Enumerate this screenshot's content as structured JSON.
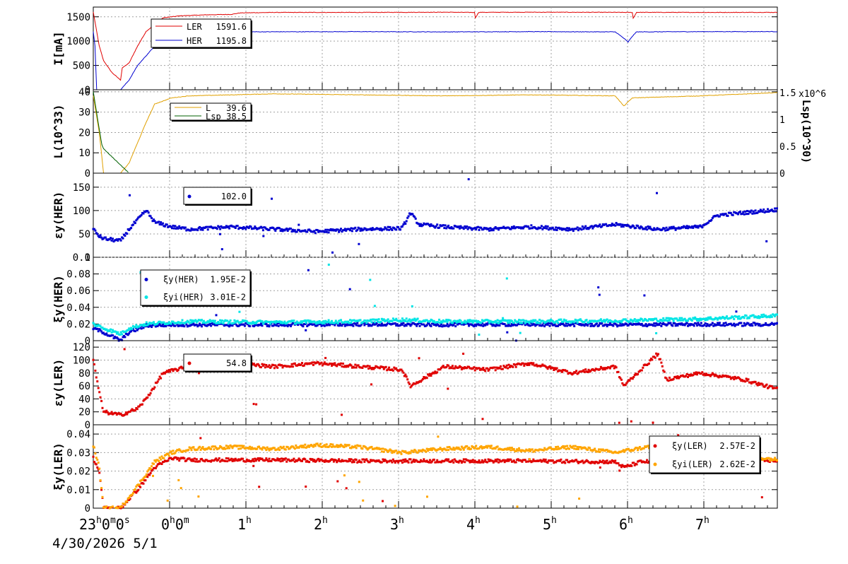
{
  "time_axis": {
    "tick_labels": [
      {
        "h": "23",
        "rest": "0",
        "rest_sup": "m",
        "tail": "0",
        "tail_sup": "s",
        "hour_sup": "h"
      },
      {
        "h": "0",
        "hour_sup": "h",
        "rest": "0",
        "rest_sup": "m"
      },
      {
        "h": "1",
        "hour_sup": "h"
      },
      {
        "h": "2",
        "hour_sup": "h"
      },
      {
        "h": "3",
        "hour_sup": "h"
      },
      {
        "h": "4",
        "hour_sup": "h"
      },
      {
        "h": "5",
        "hour_sup": "h"
      },
      {
        "h": "6",
        "hour_sup": "h"
      },
      {
        "h": "7",
        "hour_sup": "h"
      }
    ],
    "date_text": "4/30/2026  5/1"
  },
  "colors": {
    "ler": "#e00000",
    "her": "#0000d0",
    "lumi": "#e0a000",
    "lsp_green": "#006000",
    "cyan": "#00e5e5",
    "orange": "#ffa500",
    "grid": "#a0a0a0"
  },
  "chart_data": [
    {
      "type": "line",
      "ylabel": "I[mA]",
      "ylim": [
        0,
        1700
      ],
      "yticks": [
        "0",
        "500",
        "1000",
        "1500"
      ],
      "series": [
        {
          "name": "LER",
          "value_text": "1591.6",
          "x": [
            -0.12,
            -0.1,
            -0.05,
            0.0,
            0.1,
            0.2,
            0.22,
            0.3,
            0.4,
            0.5,
            0.7,
            0.9,
            1.2,
            1.5,
            1.6,
            2.0,
            3.0,
            4.0,
            4.35,
            4.36,
            4.4,
            5.0,
            6.0,
            6.2,
            6.21,
            6.25,
            7.0,
            7.9
          ],
          "y": [
            1600,
            1400,
            900,
            600,
            350,
            200,
            450,
            550,
            900,
            1200,
            1480,
            1520,
            1540,
            1550,
            1580,
            1590,
            1590,
            1595,
            1590,
            1480,
            1592,
            1595,
            1592,
            1590,
            1470,
            1592,
            1590,
            1591.6
          ]
        },
        {
          "name": "HER",
          "value_text": "1195.8",
          "x": [
            -0.12,
            -0.1,
            -0.08,
            0.0,
            0.2,
            0.3,
            0.4,
            0.6,
            0.8,
            1.0,
            2.0,
            3.0,
            4.0,
            5.0,
            6.0,
            6.1,
            6.15,
            6.2,
            6.25,
            7.0,
            7.9
          ],
          "y": [
            1200,
            900,
            0,
            0,
            0,
            200,
            500,
            900,
            1150,
            1190,
            1192,
            1195,
            1190,
            1195,
            1190,
            1060,
            980,
            1100,
            1190,
            1195,
            1195.8
          ]
        }
      ]
    },
    {
      "type": "line",
      "ylabel": "L(10^33)",
      "ylim": [
        0,
        41
      ],
      "yticks": [
        "0",
        "10",
        "20",
        "30",
        "40"
      ],
      "y2label": "Lsp(10^30)",
      "y2ticks": [
        "0",
        "0.5",
        "1",
        "1.5"
      ],
      "y2_exponent": "x10^6",
      "series": [
        {
          "name": "L",
          "value_text": "39.6",
          "x": [
            -0.12,
            -0.05,
            0.0,
            0.1,
            0.2,
            0.3,
            0.4,
            0.5,
            0.6,
            0.8,
            1.0,
            2.0,
            3.0,
            4.0,
            5.0,
            6.0,
            6.1,
            6.2,
            7.0,
            7.9
          ],
          "y": [
            38,
            20,
            0,
            0,
            0,
            5,
            15,
            25,
            34,
            37,
            38,
            39,
            38.5,
            38,
            38.5,
            38,
            33,
            37,
            38,
            39.6
          ]
        },
        {
          "name": "Lsp",
          "value_text": "38.5",
          "x": [
            -0.12,
            -0.02,
            0.0,
            0.3
          ],
          "y": [
            40,
            14,
            12,
            0
          ]
        }
      ]
    },
    {
      "type": "scatter",
      "ylabel": "εy(HER)",
      "ylim": [
        0,
        180
      ],
      "yticks": [
        "0",
        "50",
        "100",
        "150"
      ],
      "series": [
        {
          "name": "",
          "value_text": "102.0",
          "x": [
            -0.12,
            -0.05,
            0.0,
            0.2,
            0.3,
            0.4,
            0.5,
            0.6,
            0.8,
            1.0,
            1.5,
            2.0,
            2.5,
            3.0,
            3.5,
            3.6,
            3.7,
            4.0,
            4.5,
            5.0,
            5.5,
            6.0,
            6.5,
            7.0,
            7.2,
            7.5,
            7.9
          ],
          "y": [
            60,
            45,
            40,
            35,
            60,
            80,
            100,
            75,
            65,
            60,
            65,
            60,
            55,
            60,
            62,
            95,
            70,
            65,
            60,
            65,
            60,
            70,
            60,
            65,
            90,
            95,
            102
          ]
        }
      ]
    },
    {
      "type": "scatter",
      "ylabel": "ξy(HER)",
      "ylim": [
        0,
        0.1
      ],
      "yticks": [
        "0",
        "0.02",
        "0.04",
        "0.06",
        "0.08",
        "0.1"
      ],
      "series": [
        {
          "name": "ξy(HER)",
          "value_text": "1.95E-2",
          "x": [
            -0.12,
            0.0,
            0.2,
            0.3,
            0.5,
            0.8,
            1.0,
            2.0,
            3.0,
            4.0,
            5.0,
            6.0,
            7.0,
            7.9
          ],
          "y": [
            0.015,
            0.01,
            0.0,
            0.01,
            0.018,
            0.019,
            0.019,
            0.019,
            0.0195,
            0.019,
            0.0195,
            0.019,
            0.0195,
            0.0195
          ]
        },
        {
          "name": "ξyi(HER)",
          "value_text": "3.01E-2",
          "x": [
            -0.12,
            0.0,
            0.2,
            0.3,
            0.5,
            0.8,
            1.0,
            2.0,
            3.0,
            3.5,
            4.0,
            5.0,
            6.0,
            7.0,
            7.9
          ],
          "y": [
            0.02,
            0.015,
            0.008,
            0.015,
            0.02,
            0.022,
            0.023,
            0.022,
            0.023,
            0.025,
            0.023,
            0.023,
            0.024,
            0.026,
            0.03
          ]
        }
      ]
    },
    {
      "type": "scatter",
      "ylabel": "εy(LER)",
      "ylim": [
        0,
        130
      ],
      "yticks": [
        "0",
        "20",
        "40",
        "60",
        "80",
        "100",
        "120"
      ],
      "series": [
        {
          "name": "",
          "value_text": "54.8",
          "x": [
            -0.12,
            -0.05,
            0.0,
            0.2,
            0.4,
            0.5,
            0.7,
            1.0,
            1.5,
            2.0,
            2.5,
            3.0,
            3.5,
            3.6,
            4.0,
            4.5,
            5.0,
            5.5,
            6.0,
            6.1,
            6.5,
            6.6,
            7.0,
            7.5,
            7.9
          ],
          "y": [
            100,
            50,
            20,
            15,
            25,
            40,
            80,
            90,
            95,
            90,
            95,
            90,
            85,
            60,
            90,
            85,
            95,
            80,
            90,
            60,
            110,
            70,
            80,
            70,
            54.8
          ]
        }
      ]
    },
    {
      "type": "scatter",
      "ylabel": "ξy(LER)",
      "ylim": [
        0,
        0.045
      ],
      "yticks": [
        "0",
        "0.01",
        "0.02",
        "0.03",
        "0.04"
      ],
      "series": [
        {
          "name": "ξy(LER)",
          "value_text": "2.57E-2",
          "x": [
            -0.12,
            -0.05,
            0.0,
            0.2,
            0.4,
            0.6,
            0.8,
            1.0,
            2.0,
            3.0,
            4.0,
            5.0,
            6.0,
            6.1,
            6.3,
            7.0,
            7.9
          ],
          "y": [
            0.027,
            0.02,
            0.0,
            0.0,
            0.01,
            0.022,
            0.027,
            0.026,
            0.026,
            0.0255,
            0.0255,
            0.0255,
            0.025,
            0.022,
            0.025,
            0.026,
            0.0257
          ]
        },
        {
          "name": "ξyi(LER)",
          "value_text": "2.62E-2",
          "x": [
            -0.12,
            -0.05,
            0.0,
            0.2,
            0.4,
            0.6,
            0.8,
            1.0,
            1.5,
            2.0,
            2.5,
            3.0,
            3.5,
            4.0,
            4.5,
            5.0,
            5.5,
            6.0,
            6.5,
            7.0,
            7.5,
            7.9
          ],
          "y": [
            0.034,
            0.022,
            0.0,
            0.0,
            0.012,
            0.025,
            0.03,
            0.032,
            0.033,
            0.032,
            0.034,
            0.033,
            0.03,
            0.032,
            0.033,
            0.031,
            0.033,
            0.03,
            0.034,
            0.031,
            0.028,
            0.0262
          ]
        }
      ]
    }
  ]
}
